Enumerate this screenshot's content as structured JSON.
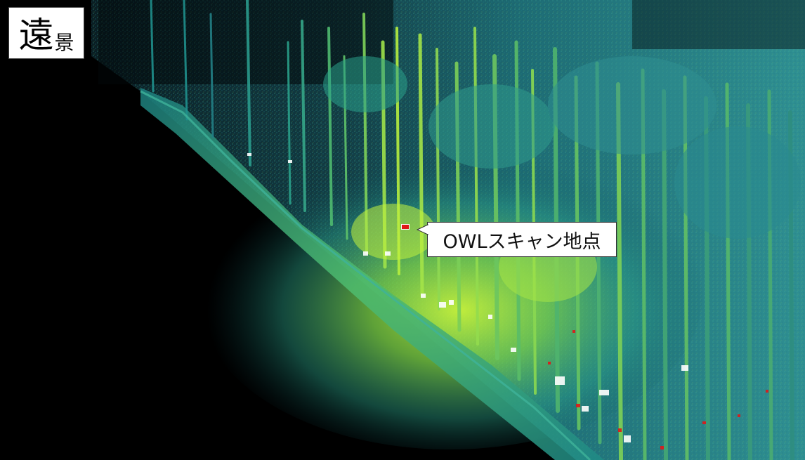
{
  "corner_label": {
    "char_large": "遠",
    "char_small": "景"
  },
  "callout": {
    "text": "OWLスキャン地点"
  },
  "colors": {
    "background": "#000000",
    "point_cloud_low": "#0e5f6a",
    "point_cloud_mid": "#2aa38a",
    "point_cloud_high": "#b8f23a",
    "marker": "#e01818"
  }
}
